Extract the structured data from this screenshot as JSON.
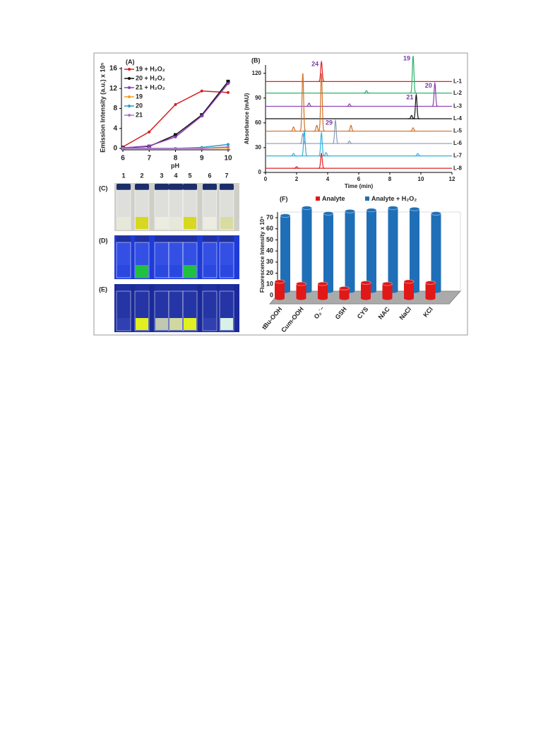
{
  "chart_data": [
    {
      "type": "line",
      "label": "(A)",
      "x_label": "pH",
      "y_label": "Emission Intensity (a.u.) x 10⁵",
      "x": [
        6,
        7,
        8,
        9,
        10
      ],
      "xlim": [
        6,
        10
      ],
      "xticks": [
        6,
        7,
        8,
        9,
        10
      ],
      "ylim": [
        0,
        16
      ],
      "yticks": [
        0,
        4,
        8,
        12,
        16
      ],
      "series": [
        {
          "name": "19 + H₂O₂",
          "color": "#d42020",
          "marker": "circle",
          "values": [
            0.3,
            3.3,
            8.8,
            11.5,
            11.2
          ]
        },
        {
          "name": "20 + H₂O₂",
          "color": "#111111",
          "marker": "square",
          "values": [
            0.1,
            0.4,
            2.7,
            6.7,
            13.4
          ]
        },
        {
          "name": "21 + H₂O₂",
          "color": "#8a3fb5",
          "marker": "circle",
          "values": [
            0.1,
            0.5,
            2.3,
            6.5,
            13.0
          ]
        },
        {
          "name": "19",
          "color": "#f0a020",
          "marker": "circle",
          "values": [
            0,
            0,
            0,
            0,
            0.1
          ]
        },
        {
          "name": "20",
          "color": "#2aa0c0",
          "marker": "circle",
          "values": [
            0,
            0,
            0,
            0.2,
            0.8
          ]
        },
        {
          "name": "21",
          "color": "#b070d0",
          "marker": "circle",
          "values": [
            0,
            0,
            0,
            0,
            0.3
          ]
        }
      ]
    },
    {
      "type": "chromatogram",
      "label": "(B)",
      "x_label": "Time (min)",
      "y_label": "Absorbance (mAU)",
      "xlim": [
        0,
        12
      ],
      "xticks": [
        0,
        2,
        4,
        6,
        8,
        10,
        12
      ],
      "ylim": [
        0,
        130
      ],
      "yticks": [
        0,
        30,
        60,
        90,
        120
      ],
      "series": [
        {
          "name": "L-1",
          "color": "#e02020",
          "baseline": 110,
          "peaks": [
            {
              "time": 3.6,
              "height": 24,
              "label": "24"
            }
          ]
        },
        {
          "name": "L-2",
          "color": "#2db36a",
          "baseline": 96,
          "peaks": [
            {
              "time": 6.5,
              "height": 3
            },
            {
              "time": 9.5,
              "height": 45,
              "label": "19"
            }
          ]
        },
        {
          "name": "L-3",
          "color": "#8a3fb5",
          "baseline": 80,
          "peaks": [
            {
              "time": 2.8,
              "height": 4
            },
            {
              "time": 5.4,
              "height": 3
            },
            {
              "time": 10.9,
              "height": 28,
              "label": "20"
            }
          ]
        },
        {
          "name": "L-4",
          "color": "#111111",
          "baseline": 65,
          "peaks": [
            {
              "time": 9.4,
              "height": 4
            },
            {
              "time": 9.7,
              "height": 29,
              "label": "21"
            }
          ]
        },
        {
          "name": "L-5",
          "color": "#d0702a",
          "baseline": 50,
          "peaks": [
            {
              "time": 1.8,
              "height": 5
            },
            {
              "time": 2.4,
              "height": 70
            },
            {
              "time": 3.3,
              "height": 7
            },
            {
              "time": 3.6,
              "height": 70
            },
            {
              "time": 5.5,
              "height": 7
            },
            {
              "time": 9.5,
              "height": 4
            }
          ]
        },
        {
          "name": "L-6",
          "color": "#8a9ab5",
          "baseline": 35,
          "peaks": [
            {
              "time": 2.4,
              "height": 12
            },
            {
              "time": 4.5,
              "height": 28,
              "label": "29"
            },
            {
              "time": 5.4,
              "height": 3
            }
          ]
        },
        {
          "name": "L-7",
          "color": "#30b0e0",
          "baseline": 20,
          "peaks": [
            {
              "time": 1.8,
              "height": 3
            },
            {
              "time": 2.5,
              "height": 30
            },
            {
              "time": 3.6,
              "height": 28
            },
            {
              "time": 3.9,
              "height": 4
            },
            {
              "time": 9.8,
              "height": 3
            }
          ]
        },
        {
          "name": "L-8",
          "color": "#e02020",
          "baseline": 5,
          "peaks": [
            {
              "time": 2.0,
              "height": 2
            },
            {
              "time": 3.6,
              "height": 18
            }
          ]
        }
      ]
    },
    {
      "type": "bar3d",
      "label": "(F)",
      "y_label": "Fluorescence Intensity x 10⁵",
      "categories": [
        "tBu-OOH",
        "Cum-OOH",
        "O₂˙⁻",
        "GSH",
        "CYS",
        "NAC",
        "NaCl",
        "KCl"
      ],
      "ylim": [
        0,
        70
      ],
      "yticks": [
        0,
        10,
        20,
        30,
        40,
        50,
        60,
        70
      ],
      "series": [
        {
          "name": "Analyte",
          "color": "#e01818",
          "values": [
            15,
            13,
            13,
            9,
            14,
            13,
            15,
            14
          ]
        },
        {
          "name": "Analyte + H₂O₂",
          "color": "#1f6fb8",
          "values": [
            68,
            75,
            70,
            72,
            73,
            75,
            74,
            70
          ]
        }
      ]
    }
  ],
  "photos": {
    "labels": [
      "(C)",
      "(D)",
      "(E)"
    ],
    "vial_numbers": [
      "1",
      "2",
      "3",
      "4",
      "5",
      "6",
      "7"
    ]
  }
}
